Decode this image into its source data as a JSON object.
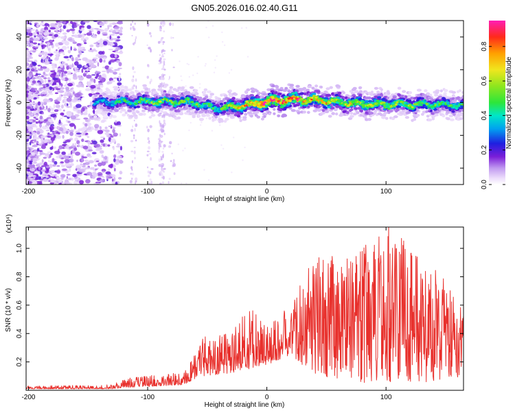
{
  "title": "GN05.2026.016.02.40.G11",
  "chart_data": [
    {
      "type": "heatmap",
      "xlabel": "Height of straight line (km)",
      "ylabel": "Frequency (Hz)",
      "xlim": [
        -202,
        165
      ],
      "ylim": [
        -50,
        50
      ],
      "x_ticks": [
        -200,
        -100,
        0,
        100
      ],
      "x_tick_labels": [
        "-200",
        "-100",
        "0",
        "100"
      ],
      "y_ticks": [
        -40,
        -20,
        0,
        20,
        40
      ],
      "y_tick_labels": [
        "-40",
        "-20",
        "0",
        "20",
        "40"
      ],
      "colorbar": {
        "label": "Normalized spectral amplitude",
        "range": [
          0.0,
          0.95
        ],
        "ticks": [
          0.0,
          0.2,
          0.4,
          0.6,
          0.8
        ],
        "tick_labels": [
          "0.0",
          "0.2",
          "0.4",
          "0.6",
          "0.8"
        ]
      },
      "ridge_center_hz": [
        {
          "x": -140,
          "f": 0.0
        },
        {
          "x": -100,
          "f": 0.5
        },
        {
          "x": -80,
          "f": 0.5
        },
        {
          "x": -60,
          "f": 0.0
        },
        {
          "x": -45,
          "f": -3.5
        },
        {
          "x": -25,
          "f": -2.5
        },
        {
          "x": 0,
          "f": 0.5
        },
        {
          "x": 25,
          "f": 2.0
        },
        {
          "x": 50,
          "f": 1.0
        },
        {
          "x": 80,
          "f": -1.0
        },
        {
          "x": 120,
          "f": -1.0
        },
        {
          "x": 165,
          "f": -1.5
        }
      ],
      "ridge_peak_amplitude": [
        {
          "x": -140,
          "a": 0.35
        },
        {
          "x": -90,
          "a": 0.55
        },
        {
          "x": -60,
          "a": 0.5
        },
        {
          "x": -40,
          "a": 0.45
        },
        {
          "x": -20,
          "a": 0.7
        },
        {
          "x": 0,
          "a": 0.92
        },
        {
          "x": 20,
          "a": 0.85
        },
        {
          "x": 40,
          "a": 0.7
        },
        {
          "x": 80,
          "a": 0.6
        },
        {
          "x": 120,
          "a": 0.55
        },
        {
          "x": 165,
          "a": 0.45
        }
      ]
    },
    {
      "type": "line",
      "xlabel": "Height of straight line (km)",
      "ylabel": "SNR (10 * v/v)",
      "scale_note": "(x10⁴)",
      "xlim": [
        -202,
        165
      ],
      "ylim": [
        0.0,
        1.15
      ],
      "x_ticks": [
        -200,
        -100,
        0,
        100
      ],
      "x_tick_labels": [
        "-200",
        "-100",
        "0",
        "100"
      ],
      "y_ticks": [
        0.2,
        0.4,
        0.6,
        0.8,
        1.0
      ],
      "y_tick_labels": [
        "0.2",
        "0.4",
        "0.6",
        "0.8",
        "1.0"
      ],
      "series": [
        {
          "name": "SNR",
          "color": "#e8302c",
          "envelope": [
            {
              "x": -202,
              "base": 0.01,
              "peak": 0.03
            },
            {
              "x": -130,
              "base": 0.01,
              "peak": 0.04
            },
            {
              "x": -120,
              "base": 0.02,
              "peak": 0.08
            },
            {
              "x": -90,
              "base": 0.03,
              "peak": 0.12
            },
            {
              "x": -70,
              "base": 0.04,
              "peak": 0.12
            },
            {
              "x": -55,
              "base": 0.1,
              "peak": 0.38
            },
            {
              "x": -30,
              "base": 0.12,
              "peak": 0.4
            },
            {
              "x": -15,
              "base": 0.15,
              "peak": 0.6
            },
            {
              "x": 0,
              "base": 0.18,
              "peak": 0.45
            },
            {
              "x": 20,
              "base": 0.25,
              "peak": 0.6
            },
            {
              "x": 40,
              "base": 0.1,
              "peak": 0.95
            },
            {
              "x": 70,
              "base": 0.05,
              "peak": 0.95
            },
            {
              "x": 102,
              "base": 0.05,
              "peak": 1.15
            },
            {
              "x": 130,
              "base": 0.05,
              "peak": 0.95
            },
            {
              "x": 165,
              "base": 0.08,
              "peak": 0.65
            }
          ]
        }
      ]
    }
  ]
}
